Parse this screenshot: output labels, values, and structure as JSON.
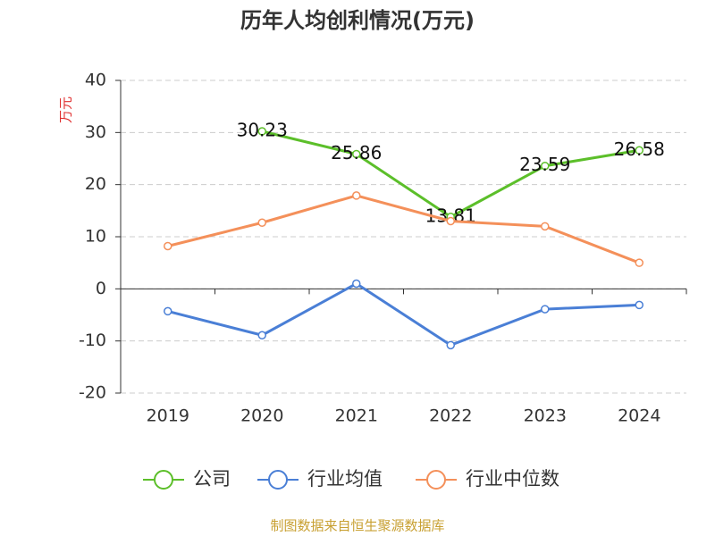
{
  "chart_data": {
    "type": "line",
    "title": "历年人均创利情况(万元)",
    "y_axis_label": "万元",
    "source": "制图数据来自恒生聚源数据库",
    "categories": [
      "2019",
      "2020",
      "2021",
      "2022",
      "2023",
      "2024"
    ],
    "series": [
      {
        "name": "公司",
        "color": "#5cbf2a",
        "values": [
          null,
          30.23,
          25.86,
          13.81,
          23.59,
          26.58
        ],
        "show_labels": true
      },
      {
        "name": "行业均值",
        "color": "#4a7fd6",
        "values": [
          -4.3,
          -8.9,
          1.0,
          -10.8,
          -3.9,
          -3.1
        ]
      },
      {
        "name": "行业中位数",
        "color": "#f4905a",
        "values": [
          8.2,
          12.7,
          17.9,
          13.0,
          12.0,
          5.0
        ]
      }
    ],
    "ylim": [
      -20,
      40
    ],
    "yticks": [
      -20,
      -10,
      0,
      10,
      20,
      30,
      40
    ],
    "grid": true,
    "legend": "bottom"
  }
}
